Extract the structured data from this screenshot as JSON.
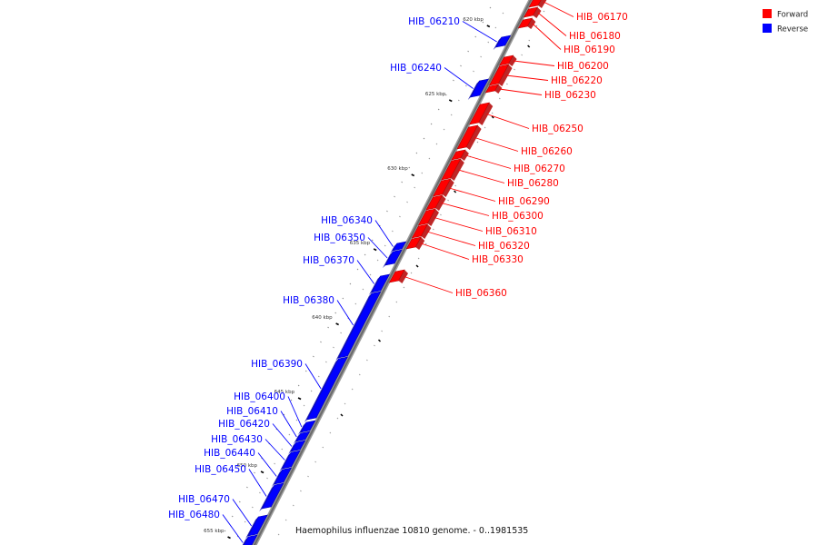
{
  "legend": {
    "forward": {
      "label": "Forward",
      "color": "#ff0000"
    },
    "reverse": {
      "label": "Reverse",
      "color": "#0000ff"
    }
  },
  "caption": "Haemophilus influenzae 10810 genome. - 0..1981535",
  "axis": {
    "unit": "kbp",
    "labels": [
      "620 kbp",
      "625 kbp",
      "630 kbp",
      "635 kbp",
      "640 kbp",
      "645 kbp",
      "650 kbp",
      "655 kbp"
    ]
  },
  "genes": [
    {
      "name": "HIB_06170",
      "strand": "forward"
    },
    {
      "name": "HIB_06180",
      "strand": "forward"
    },
    {
      "name": "HIB_06190",
      "strand": "forward"
    },
    {
      "name": "HIB_06200",
      "strand": "forward"
    },
    {
      "name": "HIB_06210",
      "strand": "reverse"
    },
    {
      "name": "HIB_06220",
      "strand": "forward"
    },
    {
      "name": "HIB_06230",
      "strand": "forward"
    },
    {
      "name": "HIB_06240",
      "strand": "reverse"
    },
    {
      "name": "HIB_06250",
      "strand": "forward"
    },
    {
      "name": "HIB_06260",
      "strand": "forward"
    },
    {
      "name": "HIB_06270",
      "strand": "forward"
    },
    {
      "name": "HIB_06280",
      "strand": "forward"
    },
    {
      "name": "HIB_06290",
      "strand": "forward"
    },
    {
      "name": "HIB_06300",
      "strand": "forward"
    },
    {
      "name": "HIB_06310",
      "strand": "forward"
    },
    {
      "name": "HIB_06320",
      "strand": "forward"
    },
    {
      "name": "HIB_06330",
      "strand": "forward"
    },
    {
      "name": "HIB_06340",
      "strand": "reverse"
    },
    {
      "name": "HIB_06350",
      "strand": "reverse"
    },
    {
      "name": "HIB_06360",
      "strand": "forward"
    },
    {
      "name": "HIB_06370",
      "strand": "reverse"
    },
    {
      "name": "HIB_06380",
      "strand": "reverse"
    },
    {
      "name": "HIB_06390",
      "strand": "reverse"
    },
    {
      "name": "HIB_06400",
      "strand": "reverse"
    },
    {
      "name": "HIB_06410",
      "strand": "reverse"
    },
    {
      "name": "HIB_06420",
      "strand": "reverse"
    },
    {
      "name": "HIB_06430",
      "strand": "reverse"
    },
    {
      "name": "HIB_06440",
      "strand": "reverse"
    },
    {
      "name": "HIB_06450",
      "strand": "reverse"
    },
    {
      "name": "HIB_06470",
      "strand": "reverse"
    },
    {
      "name": "HIB_06480",
      "strand": "reverse"
    }
  ]
}
